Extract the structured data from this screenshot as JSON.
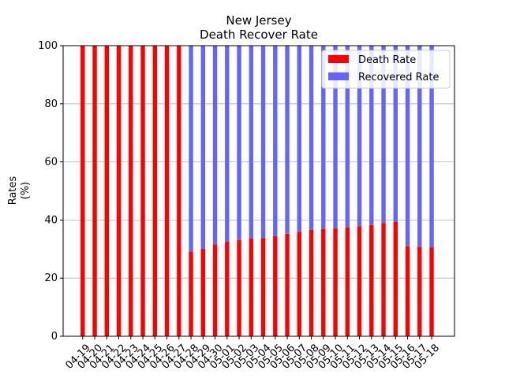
{
  "chart_data": {
    "type": "bar",
    "stacked": true,
    "title": "New Jersey",
    "subtitle": "Death Recover Rate",
    "xlabel": "",
    "ylabel": "Rates\n(%)",
    "ylim": [
      0,
      100
    ],
    "yticks": [
      0,
      20,
      40,
      60,
      80,
      100
    ],
    "grid": "y",
    "legend_position": "top-right",
    "categories": [
      "04-19",
      "04-20",
      "04-21",
      "04-22",
      "04-23",
      "04-24",
      "04-25",
      "04-26",
      "04-27",
      "04-28",
      "04-29",
      "04-30",
      "05-01",
      "05-02",
      "05-03",
      "05-04",
      "05-05",
      "05-06",
      "05-07",
      "05-08",
      "05-09",
      "05-10",
      "05-11",
      "05-12",
      "05-13",
      "05-14",
      "05-15",
      "05-16",
      "05-17",
      "05-18"
    ],
    "series": [
      {
        "name": "Death Rate",
        "color": "#ff0000",
        "values": [
          100,
          100,
          100,
          100,
          100,
          100,
          100,
          100,
          100,
          29.2,
          30.1,
          31.6,
          32.5,
          33.1,
          33.6,
          33.8,
          34.5,
          35.3,
          36.0,
          36.6,
          36.9,
          37.1,
          37.5,
          37.9,
          38.3,
          38.9,
          39.4,
          31.0,
          30.8,
          30.6
        ]
      },
      {
        "name": "Recovered Rate",
        "color": "#6464ff",
        "values": [
          0,
          0,
          0,
          0,
          0,
          0,
          0,
          0,
          0,
          70.8,
          69.9,
          68.4,
          67.5,
          66.9,
          66.4,
          66.2,
          65.5,
          64.7,
          64.0,
          63.4,
          63.1,
          62.9,
          62.5,
          62.1,
          61.7,
          61.1,
          60.6,
          69.0,
          69.2,
          69.4
        ]
      }
    ]
  }
}
